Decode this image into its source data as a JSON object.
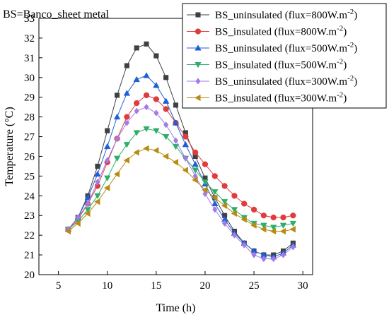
{
  "chart_data": {
    "type": "line",
    "annotation": "BS=Banco_sheet metal",
    "xlabel": "Time (h)",
    "ylabel": "Temperature (°C)",
    "xlim": [
      3,
      31
    ],
    "ylim": [
      20,
      33
    ],
    "xticks": [
      5,
      10,
      15,
      20,
      25,
      30
    ],
    "yticks": [
      20,
      21,
      22,
      23,
      24,
      25,
      26,
      27,
      28,
      29,
      30,
      31,
      32,
      33
    ],
    "legend_position": "top-right",
    "x": [
      6,
      7,
      8,
      9,
      10,
      11,
      12,
      13,
      14,
      15,
      16,
      17,
      18,
      19,
      20,
      21,
      22,
      23,
      24,
      25,
      26,
      27,
      28,
      29
    ],
    "series": [
      {
        "name": "BS_uninsulated (flux=800W.m",
        "sup": "-2",
        "name_end": ")",
        "color": "#404040",
        "marker": "square",
        "values": [
          22.3,
          22.9,
          24.0,
          25.5,
          27.3,
          29.1,
          30.6,
          31.5,
          31.7,
          31.1,
          30.0,
          28.6,
          27.2,
          26.0,
          24.9,
          23.9,
          23.0,
          22.2,
          21.6,
          21.2,
          21.0,
          21.0,
          21.2,
          21.6
        ]
      },
      {
        "name": "BS_insulated (flux=800W.m",
        "sup": "-2",
        "name_end": ")",
        "color": "#e03c3c",
        "marker": "circle",
        "values": [
          22.3,
          22.8,
          23.6,
          24.5,
          25.7,
          26.9,
          28.0,
          28.7,
          29.1,
          28.9,
          28.4,
          27.7,
          27.0,
          26.2,
          25.6,
          25.0,
          24.5,
          24.0,
          23.6,
          23.3,
          23.0,
          22.9,
          22.9,
          23.0
        ]
      },
      {
        "name": "BS_uninsulated (flux=500W.m",
        "sup": "-2",
        "name_end": ")",
        "color": "#1f5fd6",
        "marker": "triangle-up",
        "values": [
          22.3,
          22.9,
          23.9,
          25.1,
          26.5,
          28.0,
          29.2,
          29.9,
          30.1,
          29.6,
          28.8,
          27.7,
          26.6,
          25.6,
          24.6,
          23.6,
          22.8,
          22.1,
          21.6,
          21.2,
          21.0,
          20.9,
          21.1,
          21.5
        ]
      },
      {
        "name": "BS_insulated (flux=500W.m",
        "sup": "-2",
        "name_end": ")",
        "color": "#2fae6a",
        "marker": "triangle-down",
        "values": [
          22.3,
          22.7,
          23.3,
          24.0,
          24.9,
          25.9,
          26.6,
          27.2,
          27.4,
          27.3,
          27.0,
          26.5,
          25.9,
          25.3,
          24.7,
          24.2,
          23.7,
          23.3,
          22.9,
          22.6,
          22.5,
          22.4,
          22.5,
          22.6
        ]
      },
      {
        "name": "BS_uninsulated (flux=300W.m",
        "sup": "-2",
        "name_end": ")",
        "color": "#a57ae6",
        "marker": "diamond",
        "values": [
          22.3,
          22.9,
          23.6,
          24.7,
          25.8,
          26.9,
          27.7,
          28.3,
          28.5,
          28.2,
          27.6,
          26.8,
          25.9,
          25.0,
          24.1,
          23.3,
          22.6,
          22.0,
          21.5,
          21.0,
          20.8,
          20.8,
          21.0,
          21.4
        ]
      },
      {
        "name": "BS_insulated (flux=300W.m",
        "sup": "-2",
        "name_end": ")",
        "color": "#b88c12",
        "marker": "triangle-left",
        "values": [
          22.2,
          22.6,
          23.1,
          23.7,
          24.4,
          25.1,
          25.8,
          26.2,
          26.4,
          26.3,
          26.0,
          25.7,
          25.3,
          24.8,
          24.3,
          23.9,
          23.5,
          23.1,
          22.8,
          22.5,
          22.3,
          22.2,
          22.2,
          22.3
        ]
      }
    ]
  }
}
